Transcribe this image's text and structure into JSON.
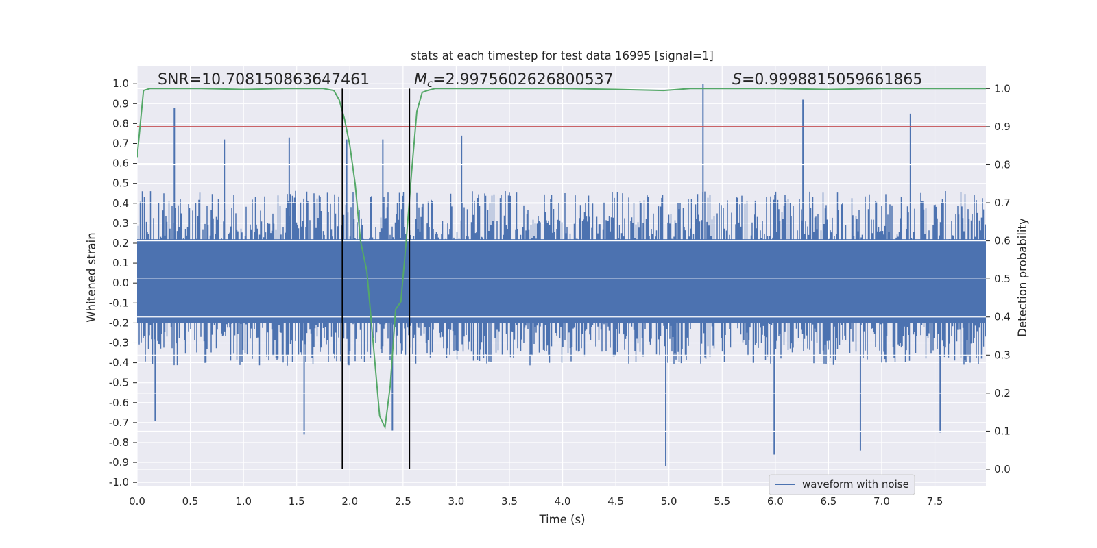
{
  "chart_data": {
    "type": "line",
    "title": "stats at each timestep for test data 16995 [signal=1]",
    "xlabel": "Time (s)",
    "ylabel": "Whitened strain",
    "ylabel_right": "Detection probability",
    "xlim": [
      0.0,
      7.98
    ],
    "ylim": [
      -1.02,
      1.09
    ],
    "ylim_right": [
      -0.045,
      1.06
    ],
    "x_ticks": [
      "0.0",
      "0.5",
      "1.0",
      "1.5",
      "2.0",
      "2.5",
      "3.0",
      "3.5",
      "4.0",
      "4.5",
      "5.0",
      "5.5",
      "6.0",
      "6.5",
      "7.0",
      "7.5"
    ],
    "y_ticks": [
      "1.0",
      "0.9",
      "0.8",
      "0.7",
      "0.6",
      "0.5",
      "0.4",
      "0.3",
      "0.2",
      "0.1",
      "0.0",
      "-0.1",
      "-0.2",
      "-0.3",
      "-0.4",
      "-0.5",
      "-0.6",
      "-0.7",
      "-0.8",
      "-0.9",
      "-1.0"
    ],
    "y_ticks_right": [
      "1.0",
      "0.9",
      "0.8",
      "0.7",
      "0.6",
      "0.5",
      "0.4",
      "0.3",
      "0.2",
      "0.1",
      "0.0"
    ],
    "annotations": {
      "snr": "SNR=10.708150863647461",
      "mc_symbol": "M",
      "mc_sub": "c",
      "mc_value": "=2.9975602626800537",
      "s_symbol": "S",
      "s_value": "=0.9998815059661865"
    },
    "legend": {
      "label": "waveform with noise",
      "location": "lower-right"
    },
    "colors": {
      "waveform": "#4c72b0",
      "probability": "#55a868",
      "threshold": "#c44e52",
      "markers": "#000000",
      "background": "#eaeaf2",
      "grid": "#ffffff"
    },
    "series": [
      {
        "name": "waveform with noise",
        "axis": "left",
        "style": "noise-band",
        "upper_envelope_typical": 0.42,
        "lower_envelope_typical": -0.36,
        "spikes": [
          {
            "x": 0.35,
            "y": 0.88
          },
          {
            "x": 0.82,
            "y": 0.72
          },
          {
            "x": 1.43,
            "y": 0.73
          },
          {
            "x": 1.97,
            "y": 0.72
          },
          {
            "x": 2.31,
            "y": 0.72
          },
          {
            "x": 3.05,
            "y": 0.74
          },
          {
            "x": 5.32,
            "y": 1.0
          },
          {
            "x": 6.26,
            "y": 0.92
          },
          {
            "x": 7.27,
            "y": 0.85
          },
          {
            "x": 0.17,
            "y": -0.69
          },
          {
            "x": 1.57,
            "y": -0.76
          },
          {
            "x": 2.4,
            "y": -0.74
          },
          {
            "x": 4.97,
            "y": -0.92
          },
          {
            "x": 5.99,
            "y": -0.86
          },
          {
            "x": 6.8,
            "y": -0.84
          },
          {
            "x": 7.55,
            "y": -0.75
          }
        ]
      },
      {
        "name": "detection probability",
        "axis": "right",
        "x": [
          0.0,
          0.06,
          0.12,
          0.3,
          0.6,
          1.0,
          1.4,
          1.75,
          1.85,
          1.9,
          1.95,
          2.0,
          2.05,
          2.1,
          2.16,
          2.22,
          2.28,
          2.33,
          2.38,
          2.43,
          2.48,
          2.53,
          2.58,
          2.63,
          2.68,
          2.73,
          2.8,
          3.0,
          3.5,
          4.0,
          4.5,
          4.95,
          5.2,
          5.5,
          6.0,
          6.5,
          7.0,
          7.5,
          7.98
        ],
        "y": [
          0.82,
          0.995,
          1.0,
          1.0,
          1.0,
          0.998,
          1.0,
          1.0,
          0.995,
          0.97,
          0.92,
          0.85,
          0.75,
          0.6,
          0.52,
          0.33,
          0.14,
          0.11,
          0.22,
          0.42,
          0.44,
          0.6,
          0.78,
          0.94,
          0.99,
          0.995,
          1.0,
          1.0,
          1.0,
          1.0,
          0.998,
          0.995,
          1.0,
          1.0,
          1.0,
          0.998,
          1.0,
          1.0,
          1.0
        ]
      }
    ],
    "threshold_right": 0.9,
    "marker_lines": [
      {
        "x": 1.93,
        "y_top": 1.0,
        "y_bottom": 0.0
      },
      {
        "x": 2.56,
        "y_top": 1.0,
        "y_bottom": 0.0
      }
    ]
  }
}
